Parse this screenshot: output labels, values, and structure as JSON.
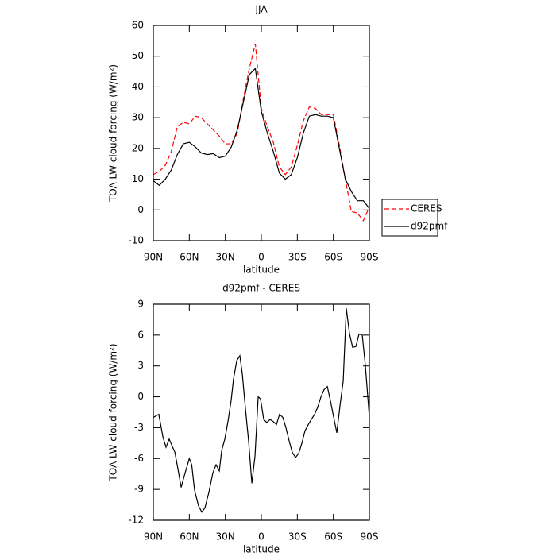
{
  "chart_data": [
    {
      "type": "line",
      "title": "JJA",
      "xlabel": "latitude",
      "ylabel": "TOA LW cloud forcing (W/m²)",
      "x": [
        90,
        85,
        80,
        75,
        70,
        65,
        60,
        55,
        50,
        45,
        40,
        35,
        30,
        25,
        20,
        15,
        10,
        5,
        0,
        -5,
        -10,
        -15,
        -20,
        -25,
        -30,
        -35,
        -40,
        -45,
        -50,
        -55,
        -60,
        -65,
        -70,
        -75,
        -80,
        -85,
        -90
      ],
      "series": [
        {
          "name": "CERES",
          "color": "#ff0000",
          "dash": true,
          "values": [
            11.5,
            12.5,
            14.5,
            19,
            27,
            28.5,
            28,
            30.5,
            30,
            28,
            26,
            24,
            21.5,
            21.5,
            25,
            36,
            46,
            54,
            33,
            27,
            22,
            14,
            11.5,
            14,
            21,
            29,
            33.5,
            33,
            31,
            31,
            31,
            21,
            10,
            -0.5,
            -1,
            -3.5,
            1
          ]
        },
        {
          "name": "d92pmf",
          "color": "#000000",
          "dash": false,
          "values": [
            9.5,
            8,
            10,
            13,
            18,
            21.5,
            22,
            20.5,
            18.5,
            18,
            18.3,
            17,
            17.5,
            20.5,
            26,
            35,
            44,
            46,
            32,
            25,
            19,
            12,
            10,
            11.5,
            17,
            25,
            30.5,
            31,
            30.5,
            30.5,
            30,
            20,
            10,
            6,
            3,
            3,
            0.5
          ]
        }
      ],
      "xlim": [
        90,
        -90
      ],
      "xticks": [
        {
          "value": 90,
          "label": "90N"
        },
        {
          "value": 60,
          "label": "60N"
        },
        {
          "value": 30,
          "label": "30N"
        },
        0,
        {
          "value": -30,
          "label": "30S"
        },
        {
          "value": -60,
          "label": "60S"
        },
        {
          "value": -90,
          "label": "90S"
        }
      ],
      "ylim": [
        -10,
        60
      ],
      "yticks": [
        -10,
        0,
        10,
        20,
        30,
        40,
        50,
        60
      ],
      "legend": "right"
    },
    {
      "type": "line",
      "title": "d92pmf - CERES",
      "xlabel": "latitude",
      "ylabel": "TOA LW cloud forcing (W/m²)",
      "x": [
        90,
        85.4,
        82,
        79.4,
        76.8,
        72,
        69.5,
        66.8,
        64,
        60,
        58,
        55.6,
        52.3,
        49.6,
        47,
        43.7,
        40.4,
        37.7,
        35,
        33,
        30.4,
        27.8,
        25.2,
        23.2,
        20.5,
        17.9,
        15.9,
        13.2,
        10.6,
        7.9,
        5.3,
        2.6,
        0.7,
        -2,
        -4.6,
        -7.3,
        -9.9,
        -12.6,
        -15.2,
        -17.9,
        -20.5,
        -23.2,
        -25.8,
        -28.5,
        -31.1,
        -33.8,
        -36.4,
        -39.1,
        -41.7,
        -44.4,
        -47,
        -49.7,
        -52.3,
        -55,
        -57.6,
        -60.3,
        -62.9,
        -65.6,
        -68.2,
        -70.8,
        -73.5,
        -76.1,
        -78.8,
        -81.4,
        -84.1,
        -86.7,
        -90
      ],
      "series": [
        {
          "name": "d92pmf - CERES",
          "color": "#000000",
          "dash": false,
          "values": [
            -2,
            -1.7,
            -3.9,
            -4.9,
            -4.1,
            -5.4,
            -7,
            -8.8,
            -7.6,
            -6,
            -6.6,
            -9.1,
            -10.6,
            -11.2,
            -10.8,
            -9.3,
            -7.4,
            -6.6,
            -7.2,
            -5.2,
            -4.1,
            -2.4,
            -0.4,
            1.7,
            3.5,
            4,
            2.3,
            -1.2,
            -4.3,
            -8.4,
            -5.8,
            0,
            -0.2,
            -2.2,
            -2.5,
            -2.2,
            -2.4,
            -2.7,
            -1.7,
            -2,
            -3,
            -4.3,
            -5.4,
            -5.9,
            -5.5,
            -4.5,
            -3.3,
            -2.7,
            -2.2,
            -1.7,
            -1,
            0,
            0.7,
            1,
            -0.4,
            -2,
            -3.5,
            -0.8,
            1.5,
            8.6,
            6.1,
            4.8,
            4.9,
            6.1,
            6,
            3,
            -2
          ]
        }
      ],
      "xlim": [
        90,
        -90
      ],
      "xticks": [
        {
          "value": 90,
          "label": "90N"
        },
        {
          "value": 60,
          "label": "60N"
        },
        {
          "value": 30,
          "label": "30N"
        },
        0,
        {
          "value": -30,
          "label": "30S"
        },
        {
          "value": -60,
          "label": "60S"
        },
        {
          "value": -90,
          "label": "90S"
        }
      ],
      "ylim": [
        -12,
        9
      ],
      "yticks": [
        -12,
        -9,
        -6,
        -3,
        0,
        3,
        6,
        9
      ]
    }
  ]
}
